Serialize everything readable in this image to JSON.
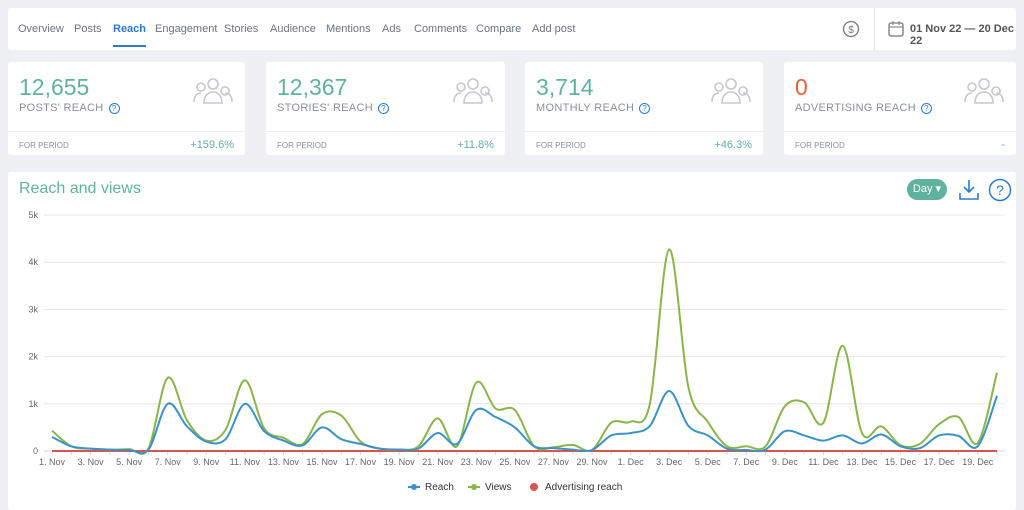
{
  "nav": {
    "tabs": [
      "Overview",
      "Posts",
      "Reach",
      "Engagement",
      "Stories",
      "Audience",
      "Mentions",
      "Ads",
      "Comments",
      "Compare",
      "Add post"
    ],
    "active": 2,
    "date_range": "01 Nov 22 — 20 Dec 22"
  },
  "cards": [
    {
      "value": "12,655",
      "label": "POSTS' REACH",
      "period": "FOR PERIOD",
      "change": "+159.6%"
    },
    {
      "value": "12,367",
      "label": "STORIES' REACH",
      "period": "FOR PERIOD",
      "change": "+11.8%"
    },
    {
      "value": "3,714",
      "label": "MONTHLY REACH",
      "period": "FOR PERIOD",
      "change": "+46.3%"
    },
    {
      "value": "0",
      "label": "ADVERTISING REACH",
      "period": "FOR PERIOD",
      "change": "-"
    }
  ],
  "controls": {
    "period": "Day"
  },
  "chart_data": {
    "type": "line",
    "title": "Reach and views",
    "categories": [
      "1. Nov",
      null,
      "3. Nov",
      null,
      "5. Nov",
      null,
      "7. Nov",
      null,
      "9. Nov",
      null,
      "11. Nov",
      null,
      "13. Nov",
      null,
      "15. Nov",
      null,
      "17. Nov",
      null,
      "19. Nov",
      null,
      "21. Nov",
      null,
      "23. Nov",
      null,
      "25. Nov",
      null,
      "27. Nov",
      null,
      "29. Nov",
      null,
      "1. Dec",
      null,
      "3. Dec",
      null,
      "5. Dec",
      null,
      "7. Dec",
      null,
      "9. Dec",
      null,
      "11. Dec",
      null,
      "13. Dec",
      null,
      "15. Dec",
      null,
      "17. Dec",
      null,
      "19. Dec",
      null
    ],
    "series": [
      {
        "name": "Advertising reach",
        "color": "#d9534f",
        "values": [
          0,
          0,
          0,
          0,
          0,
          0,
          0,
          0,
          0,
          0,
          0,
          0,
          0,
          0,
          0,
          0,
          0,
          0,
          0,
          0,
          0,
          0,
          0,
          0,
          0,
          0,
          0,
          0,
          0,
          0,
          0,
          0,
          0,
          0,
          0,
          0,
          0,
          0,
          0,
          0,
          0,
          0,
          0,
          0,
          0,
          0,
          0,
          0,
          0,
          0
        ]
      },
      {
        "name": "Views",
        "color": "#8ab54a",
        "values": [
          430,
          100,
          50,
          30,
          40,
          50,
          1550,
          650,
          220,
          450,
          1500,
          480,
          280,
          150,
          780,
          750,
          200,
          50,
          30,
          100,
          690,
          100,
          1450,
          900,
          870,
          100,
          80,
          130,
          20,
          600,
          620,
          1000,
          4270,
          1350,
          620,
          100,
          100,
          100,
          950,
          1030,
          600,
          2230,
          380,
          520,
          120,
          150,
          570,
          720,
          170,
          1660
        ]
      },
      {
        "name": "Reach",
        "color": "#3a93c6",
        "values": [
          300,
          100,
          50,
          30,
          20,
          30,
          1000,
          520,
          200,
          250,
          1000,
          420,
          220,
          120,
          500,
          250,
          150,
          50,
          30,
          50,
          380,
          150,
          870,
          720,
          500,
          100,
          60,
          30,
          20,
          330,
          380,
          530,
          1270,
          530,
          330,
          50,
          20,
          30,
          420,
          330,
          220,
          330,
          160,
          350,
          100,
          60,
          330,
          320,
          100,
          1170
        ]
      }
    ],
    "legend_order": [
      2,
      1,
      0
    ],
    "ylim": [
      0,
      5000
    ],
    "yticks": [
      0,
      {
        "value": 1000,
        "label": "1k"
      },
      {
        "value": 2000,
        "label": "2k"
      },
      {
        "value": 3000,
        "label": "3k"
      },
      {
        "value": 4000,
        "label": "4k"
      },
      {
        "value": 5000,
        "label": "5k"
      }
    ],
    "grid": true
  }
}
